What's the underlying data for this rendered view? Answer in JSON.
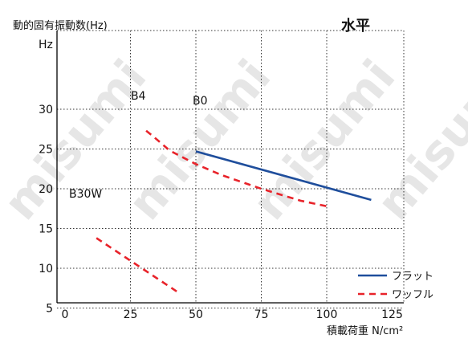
{
  "watermark": "misumi",
  "chart_data": {
    "type": "line",
    "title": "水平",
    "ylabel": "動的固有振動数(Hz)",
    "yunit": "Hz",
    "xlabel": "積載荷重 N/cm²",
    "xlim": [
      0,
      125
    ],
    "ylim": [
      0,
      30
    ],
    "xticks": [
      0,
      25,
      50,
      75,
      100,
      125
    ],
    "yticks": [
      5,
      10,
      15,
      20,
      25,
      30
    ],
    "grid": true,
    "legend_position": "bottom-right",
    "legend": [
      {
        "label": "フラット",
        "color": "#1f4e9c",
        "style": "solid"
      },
      {
        "label": "ワッフル",
        "color": "#e8232a",
        "style": "dashed"
      }
    ],
    "series": [
      {
        "name": "B0",
        "label": "B0",
        "type": "フラット",
        "color": "#1f4e9c",
        "dash": "solid",
        "x": [
          50,
          117
        ],
        "y": [
          24.7,
          18.6
        ]
      },
      {
        "name": "B4",
        "label": "B4",
        "type": "ワッフル",
        "color": "#e8232a",
        "dash": "dashed",
        "x": [
          31,
          34,
          40,
          50,
          60,
          75,
          90,
          100
        ],
        "y": [
          27.3,
          26.5,
          24.8,
          23.1,
          21.7,
          20.0,
          18.5,
          17.8
        ]
      },
      {
        "name": "B30W",
        "label": "B30W",
        "type": "ワッフル",
        "color": "#e8232a",
        "dash": "dashed",
        "x": [
          12,
          44
        ],
        "y": [
          13.8,
          6.8
        ]
      }
    ]
  }
}
